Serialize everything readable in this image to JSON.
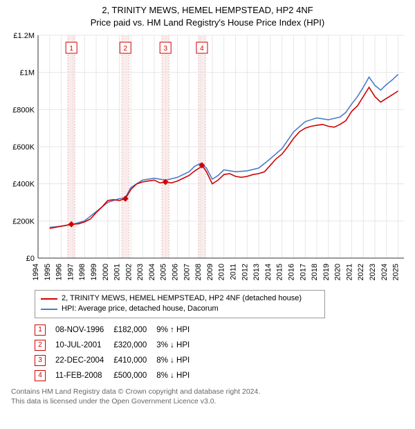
{
  "title": {
    "line1": "2, TRINITY MEWS, HEMEL HEMPSTEAD, HP2 4NF",
    "line2": "Price paid vs. HM Land Registry's House Price Index (HPI)"
  },
  "chart": {
    "type": "line",
    "background_color": "#ffffff",
    "grid_color": "#e6e6e6",
    "axis_color": "#333333",
    "ylabel_fontsize": 11,
    "xlabel_fontsize": 11,
    "title_fontsize": 13,
    "x_years": [
      1994,
      1995,
      1996,
      1997,
      1998,
      1999,
      2000,
      2001,
      2002,
      2003,
      2004,
      2005,
      2006,
      2007,
      2008,
      2009,
      2010,
      2011,
      2012,
      2013,
      2014,
      2015,
      2016,
      2017,
      2018,
      2019,
      2020,
      2021,
      2022,
      2023,
      2024,
      2025
    ],
    "xlim": [
      1994,
      2025.5
    ],
    "ylim": [
      0,
      1200000
    ],
    "ytick_step": 200000,
    "ytick_labels": [
      "£0",
      "£200K",
      "£400K",
      "£600K",
      "£800K",
      "£1M",
      "£1.2M"
    ],
    "series": [
      {
        "name": "price_paid",
        "color": "#d00000",
        "line_width": 1.6,
        "label": "2, TRINITY MEWS, HEMEL HEMPSTEAD, HP2 4NF (detached house)",
        "data": [
          [
            1995.0,
            160000
          ],
          [
            1996.87,
            182000
          ],
          [
            1997.5,
            185000
          ],
          [
            1998.0,
            195000
          ],
          [
            1998.5,
            210000
          ],
          [
            1999.0,
            245000
          ],
          [
            1999.5,
            275000
          ],
          [
            2000.0,
            310000
          ],
          [
            2000.5,
            315000
          ],
          [
            2001.0,
            310000
          ],
          [
            2001.52,
            320000
          ],
          [
            2002.0,
            370000
          ],
          [
            2002.5,
            400000
          ],
          [
            2003.0,
            410000
          ],
          [
            2003.5,
            415000
          ],
          [
            2004.0,
            420000
          ],
          [
            2004.5,
            405000
          ],
          [
            2004.97,
            410000
          ],
          [
            2005.5,
            405000
          ],
          [
            2006.0,
            415000
          ],
          [
            2006.5,
            430000
          ],
          [
            2007.0,
            445000
          ],
          [
            2007.5,
            470000
          ],
          [
            2008.0,
            490000
          ],
          [
            2008.11,
            500000
          ],
          [
            2008.5,
            465000
          ],
          [
            2009.0,
            400000
          ],
          [
            2009.5,
            420000
          ],
          [
            2010.0,
            450000
          ],
          [
            2010.5,
            455000
          ],
          [
            2011.0,
            440000
          ],
          [
            2011.5,
            435000
          ],
          [
            2012.0,
            440000
          ],
          [
            2012.5,
            450000
          ],
          [
            2013.0,
            455000
          ],
          [
            2013.5,
            465000
          ],
          [
            2014.0,
            500000
          ],
          [
            2014.5,
            535000
          ],
          [
            2015.0,
            560000
          ],
          [
            2015.5,
            600000
          ],
          [
            2016.0,
            645000
          ],
          [
            2016.5,
            680000
          ],
          [
            2017.0,
            700000
          ],
          [
            2017.5,
            710000
          ],
          [
            2018.0,
            715000
          ],
          [
            2018.5,
            720000
          ],
          [
            2019.0,
            710000
          ],
          [
            2019.5,
            705000
          ],
          [
            2020.0,
            720000
          ],
          [
            2020.5,
            740000
          ],
          [
            2021.0,
            790000
          ],
          [
            2021.5,
            820000
          ],
          [
            2022.0,
            870000
          ],
          [
            2022.5,
            920000
          ],
          [
            2023.0,
            870000
          ],
          [
            2023.5,
            840000
          ],
          [
            2024.0,
            860000
          ],
          [
            2024.5,
            880000
          ],
          [
            2025.0,
            900000
          ]
        ]
      },
      {
        "name": "hpi",
        "color": "#4a7bc8",
        "line_width": 1.6,
        "label": "HPI: Average price, detached house, Dacorum",
        "data": [
          [
            1995.0,
            165000
          ],
          [
            1996.0,
            172000
          ],
          [
            1997.0,
            182000
          ],
          [
            1998.0,
            200000
          ],
          [
            1999.0,
            250000
          ],
          [
            2000.0,
            300000
          ],
          [
            2001.0,
            320000
          ],
          [
            2001.5,
            325000
          ],
          [
            2002.0,
            380000
          ],
          [
            2003.0,
            420000
          ],
          [
            2004.0,
            430000
          ],
          [
            2005.0,
            420000
          ],
          [
            2006.0,
            435000
          ],
          [
            2007.0,
            465000
          ],
          [
            2007.5,
            495000
          ],
          [
            2008.0,
            510000
          ],
          [
            2008.5,
            485000
          ],
          [
            2009.0,
            425000
          ],
          [
            2009.5,
            445000
          ],
          [
            2010.0,
            475000
          ],
          [
            2011.0,
            465000
          ],
          [
            2012.0,
            470000
          ],
          [
            2013.0,
            485000
          ],
          [
            2014.0,
            535000
          ],
          [
            2015.0,
            590000
          ],
          [
            2016.0,
            680000
          ],
          [
            2017.0,
            735000
          ],
          [
            2018.0,
            755000
          ],
          [
            2019.0,
            745000
          ],
          [
            2020.0,
            760000
          ],
          [
            2020.5,
            785000
          ],
          [
            2021.0,
            830000
          ],
          [
            2021.5,
            870000
          ],
          [
            2022.0,
            920000
          ],
          [
            2022.5,
            975000
          ],
          [
            2023.0,
            930000
          ],
          [
            2023.5,
            905000
          ],
          [
            2024.0,
            935000
          ],
          [
            2024.5,
            960000
          ],
          [
            2025.0,
            990000
          ]
        ]
      }
    ],
    "transactions": [
      {
        "n": "1",
        "year": 1996.87,
        "value": 182000,
        "date": "08-NOV-1996",
        "price": "£182,000",
        "delta": "9% ↑ HPI"
      },
      {
        "n": "2",
        "year": 2001.52,
        "value": 320000,
        "date": "10-JUL-2001",
        "price": "£320,000",
        "delta": "3% ↓ HPI"
      },
      {
        "n": "3",
        "year": 2004.97,
        "value": 410000,
        "date": "22-DEC-2004",
        "price": "£410,000",
        "delta": "8% ↓ HPI"
      },
      {
        "n": "4",
        "year": 2008.11,
        "value": 500000,
        "date": "11-FEB-2008",
        "price": "£500,000",
        "delta": "8% ↓ HPI"
      }
    ],
    "band_color": "#fbecec",
    "band_line_color": "#e9b6b6",
    "marker_fill": "#d00000",
    "marker_box_stroke": "#d00000"
  },
  "footer": {
    "line1": "Contains HM Land Registry data © Crown copyright and database right 2024.",
    "line2": "This data is licensed under the Open Government Licence v3.0."
  }
}
